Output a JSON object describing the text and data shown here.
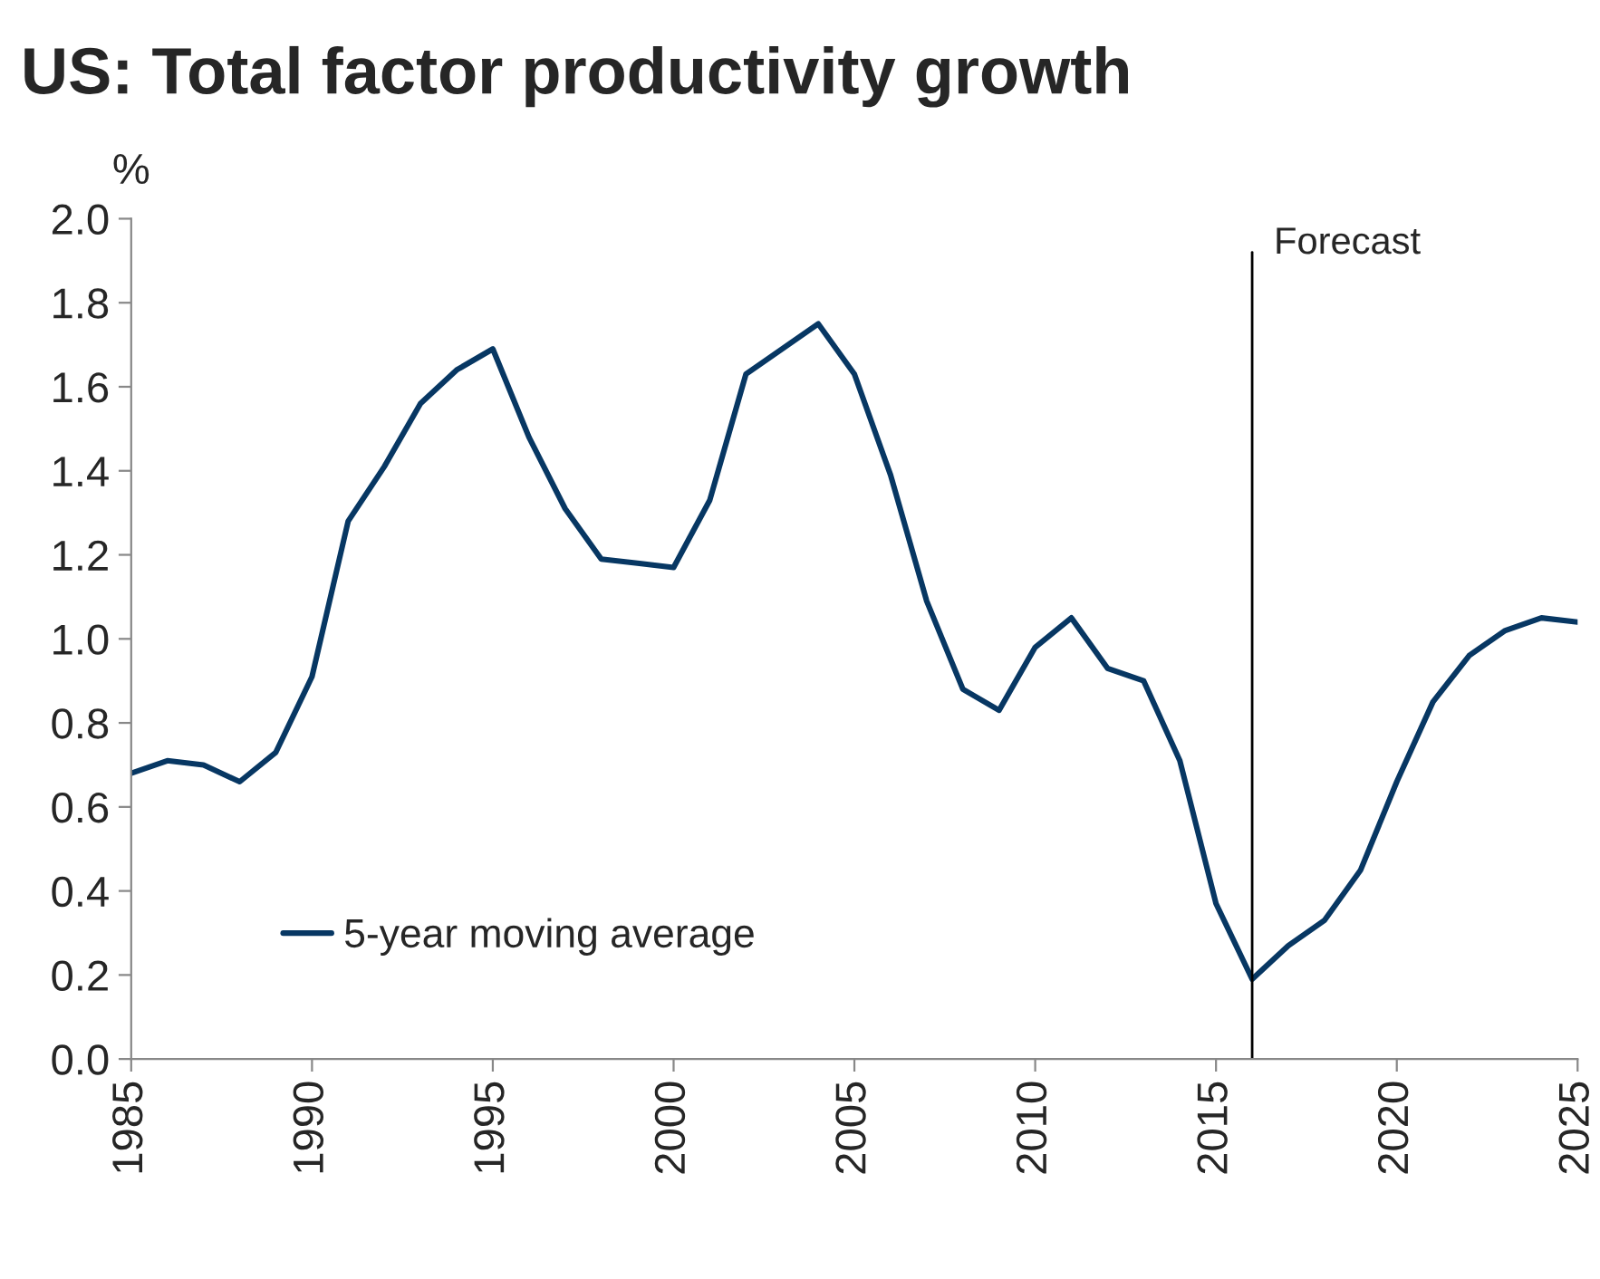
{
  "chart_data": {
    "type": "line",
    "title": "US: Total factor productivity growth",
    "ylabel": "%",
    "x": [
      1985,
      1986,
      1987,
      1988,
      1989,
      1990,
      1991,
      1992,
      1993,
      1994,
      1995,
      1996,
      1997,
      1998,
      1999,
      2000,
      2001,
      2002,
      2003,
      2004,
      2005,
      2006,
      2007,
      2008,
      2009,
      2010,
      2011,
      2012,
      2013,
      2014,
      2015,
      2016,
      2017,
      2018,
      2019,
      2020,
      2021,
      2022,
      2023,
      2024,
      2025
    ],
    "series": [
      {
        "name": "5-year moving average",
        "color": "#073763",
        "values": [
          0.68,
          0.71,
          0.7,
          0.66,
          0.73,
          0.91,
          1.28,
          1.41,
          1.56,
          1.64,
          1.69,
          1.48,
          1.31,
          1.19,
          1.18,
          1.17,
          1.33,
          1.63,
          1.69,
          1.75,
          1.63,
          1.39,
          1.09,
          0.88,
          0.83,
          0.98,
          1.05,
          0.93,
          0.9,
          0.71,
          0.37,
          0.19,
          0.27,
          0.33,
          0.45,
          0.66,
          0.85,
          0.96,
          1.02,
          1.05,
          1.04
        ]
      }
    ],
    "xlim": [
      1985,
      2025
    ],
    "xticks": [
      1985,
      1990,
      1995,
      2000,
      2005,
      2010,
      2015,
      2020,
      2025
    ],
    "ylim": [
      0,
      2
    ],
    "yticks": [
      {
        "value": 0,
        "label": "0.0"
      },
      {
        "value": 0.2,
        "label": "0.2"
      },
      {
        "value": 0.4,
        "label": "0.4"
      },
      {
        "value": 0.6,
        "label": "0.6"
      },
      {
        "value": 0.8,
        "label": "0.8"
      },
      {
        "value": 1,
        "label": "1.0"
      },
      {
        "value": 1.2,
        "label": "1.2"
      },
      {
        "value": 1.4,
        "label": "1.4"
      },
      {
        "value": 1.6,
        "label": "1.6"
      },
      {
        "value": 1.8,
        "label": "1.8"
      },
      {
        "value": 2,
        "label": "2.0"
      }
    ],
    "ref_lines": [
      {
        "axis": "x",
        "value": 2016,
        "label": "Forecast",
        "color": "#000000"
      }
    ],
    "grid": false,
    "legend": "bottom left",
    "marker": "none",
    "line_style": "solid"
  }
}
